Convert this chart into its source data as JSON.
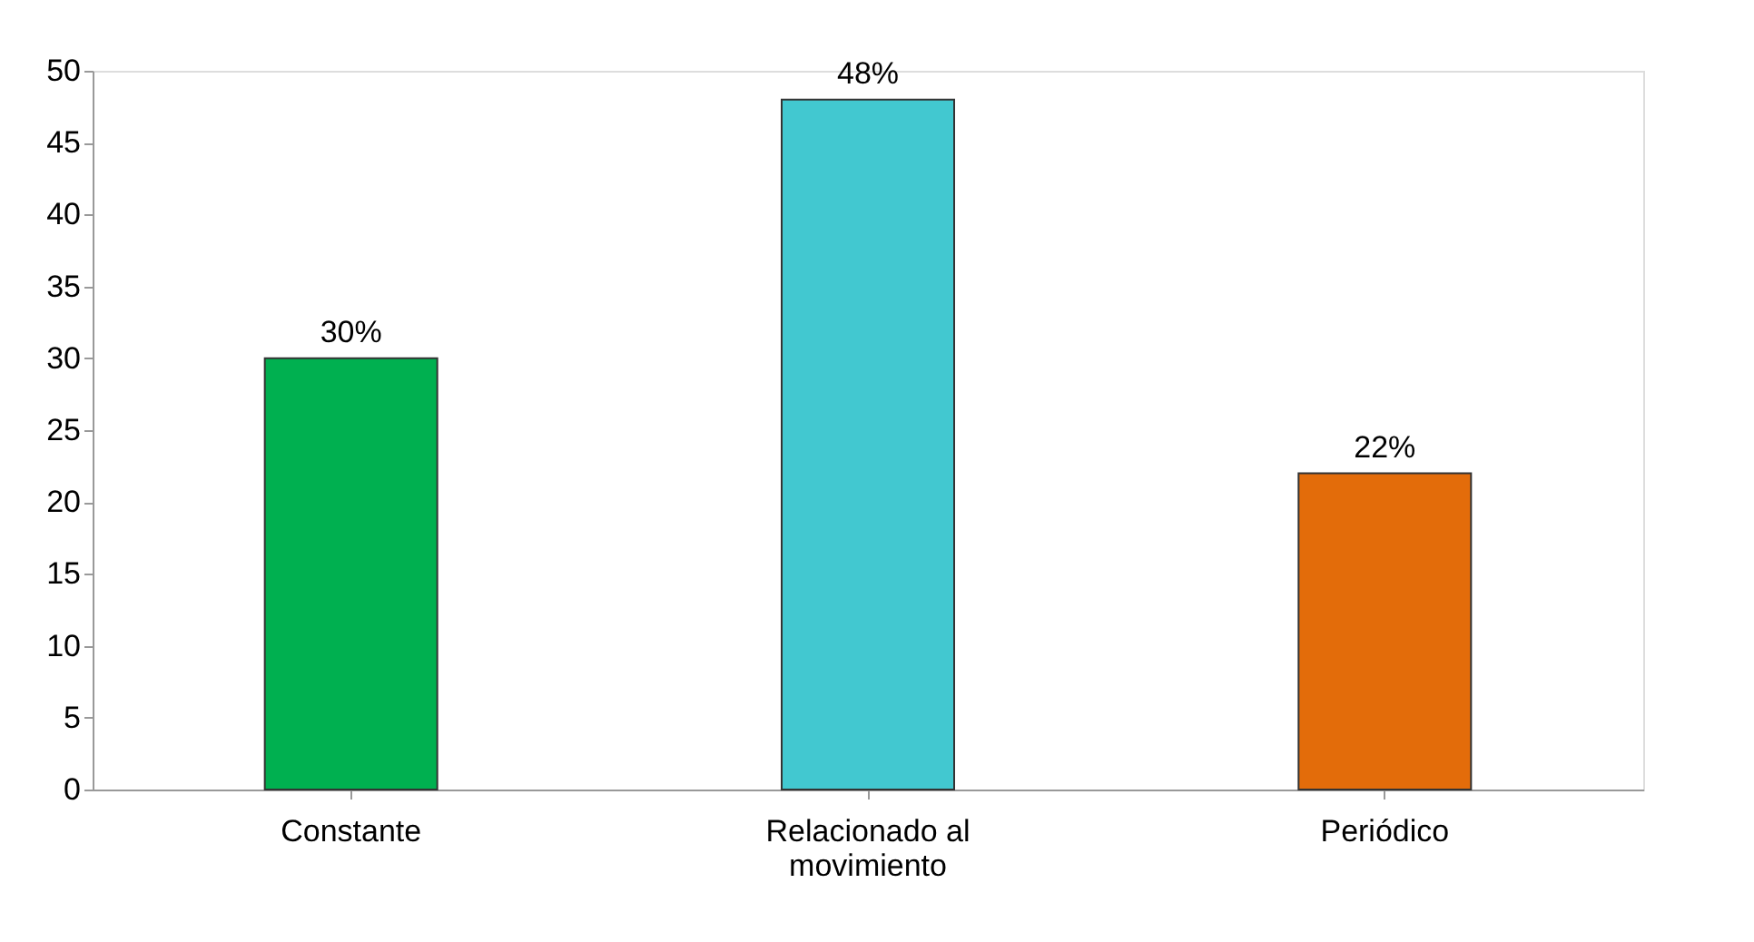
{
  "chart_data": {
    "type": "bar",
    "categories": [
      "Constante",
      "Relacionado al movimiento",
      "Periódico"
    ],
    "values": [
      30,
      48,
      22
    ],
    "colors": [
      "#00b050",
      "#42c8d0",
      "#e36c0a"
    ],
    "value_labels": [
      "30%",
      "48%",
      "22%"
    ],
    "ylim": [
      0,
      50
    ],
    "yticks": [
      0,
      5,
      10,
      15,
      20,
      25,
      30,
      35,
      40,
      45,
      50
    ],
    "grid": false
  }
}
